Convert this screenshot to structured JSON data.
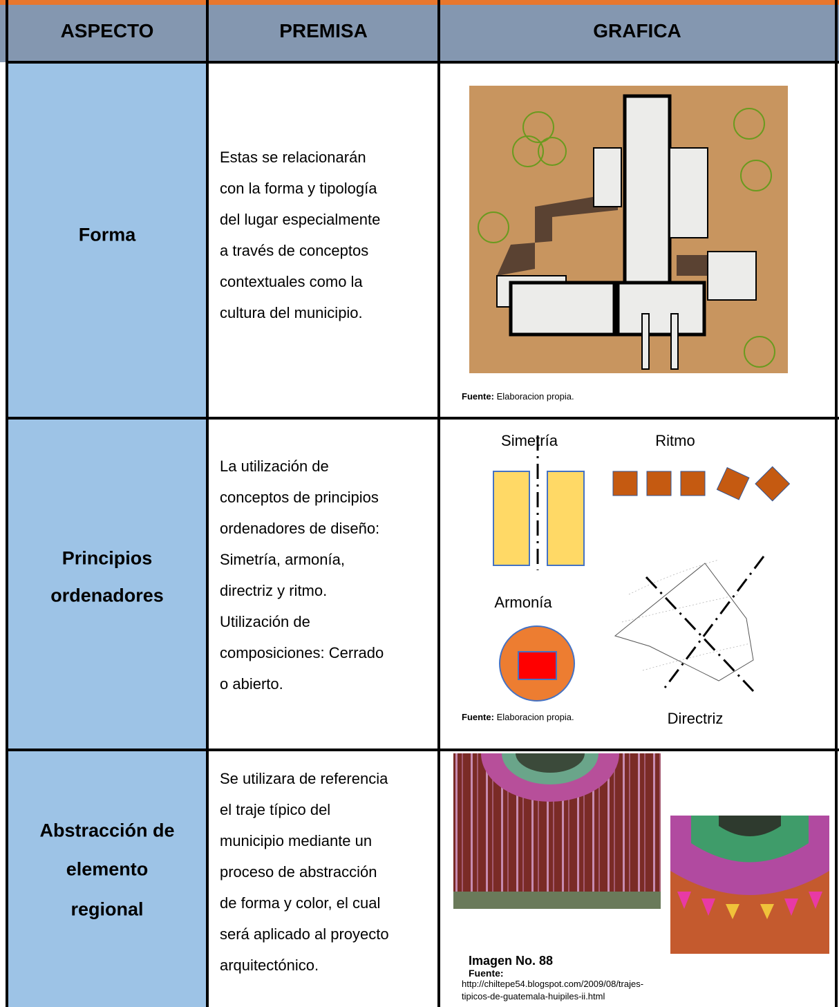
{
  "header": {
    "columns": [
      "ASPECTO",
      "PREMISA",
      "GRAFICA"
    ]
  },
  "rows": [
    {
      "aspect": [
        "Forma"
      ],
      "premise": [
        "Estas se relacionarán",
        "con la forma y tipología",
        "del lugar especialmente",
        "a través de conceptos",
        "contextuales como la",
        "cultura del municipio."
      ],
      "graphic": {
        "source_label": "Fuente:",
        "source": "Elaboracion propia."
      }
    },
    {
      "aspect": [
        "Principios",
        "ordenadores"
      ],
      "premise": [
        "La utilización de",
        "conceptos de principios",
        "ordenadores de diseño:",
        "Simetría, armonía,",
        "directriz y ritmo.",
        "Utilización de",
        "composiciones: Cerrado",
        "o abierto."
      ],
      "graphic": {
        "labels": [
          "Simetría",
          "Ritmo",
          "Armonía",
          "Directriz"
        ],
        "source_label": "Fuente:",
        "source": "Elaboracion propia."
      }
    },
    {
      "aspect": [
        "Abstracción de",
        "elemento",
        "regional"
      ],
      "premise": [
        "Se utilizara de referencia",
        "el traje típico del",
        "municipio mediante un",
        "proceso de abstracción",
        "de forma y color, el cual",
        "será aplicado al proyecto",
        "arquitectónico."
      ],
      "graphic": {
        "image_label": "Imagen No. 88",
        "source_label": "Fuente:",
        "source": [
          "http://chiltepe54.blogspot.com/2009/08/trajes-",
          "tipicos-de-guatemala-huipiles-ii.html"
        ]
      }
    }
  ]
}
